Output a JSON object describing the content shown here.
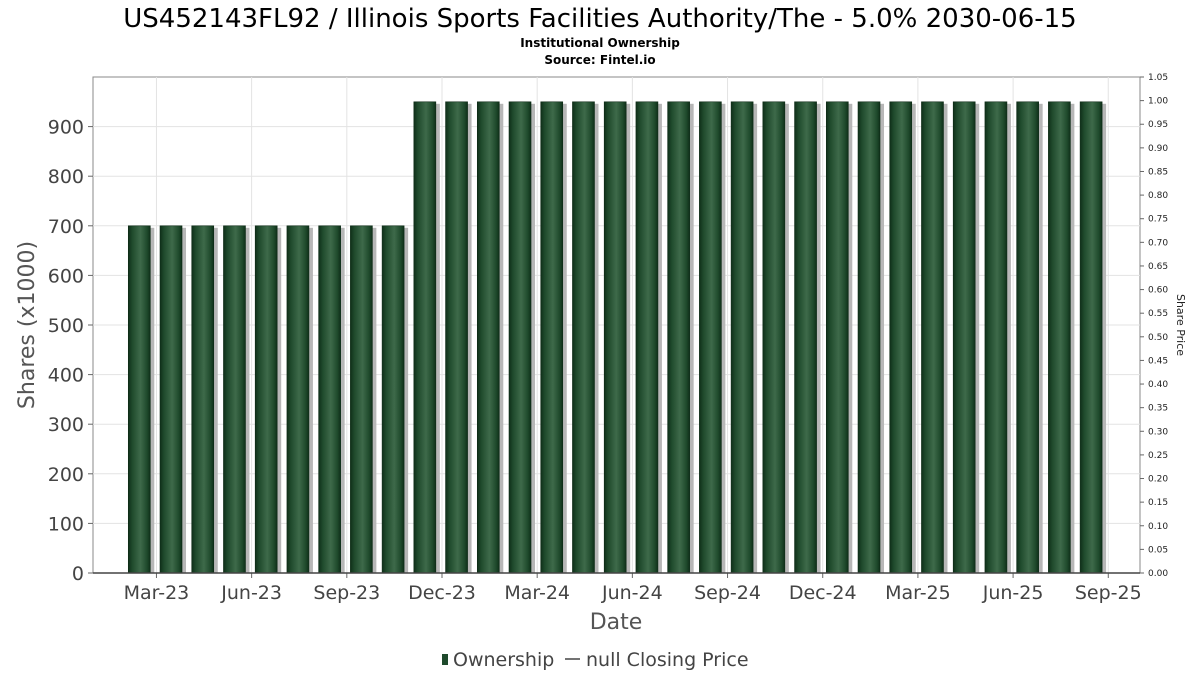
{
  "chart_data": {
    "type": "bar",
    "title": "US452143FL92 / Illinois Sports Facilities Authority/The - 5.0% 2030-06-15",
    "subtitle_lines": [
      "Institutional Ownership",
      "Source: Fintel.io"
    ],
    "xlabel": "Date",
    "ylabel": "Shares (x1000)",
    "y2label": "Share Price",
    "x_tick_labels": [
      "Mar-23",
      "Jun-23",
      "Sep-23",
      "Dec-23",
      "Mar-24",
      "Jun-24",
      "Sep-24",
      "Dec-24",
      "Mar-25",
      "Jun-25",
      "Sep-25"
    ],
    "x_start_month": "2023-01",
    "x_end_month": "2025-10",
    "x_tick_months": [
      "2023-03",
      "2023-06",
      "2023-09",
      "2023-12",
      "2024-03",
      "2024-06",
      "2024-09",
      "2024-12",
      "2025-03",
      "2025-06",
      "2025-09"
    ],
    "ylim": [
      0,
      1000
    ],
    "y_ticks": [
      "0",
      "100",
      "200",
      "300",
      "400",
      "500",
      "600",
      "700",
      "800",
      "900"
    ],
    "y_tick_values": [
      0,
      100,
      200,
      300,
      400,
      500,
      600,
      700,
      800,
      900
    ],
    "y2lim": [
      0,
      1.05
    ],
    "y2_ticks": [
      "0.00",
      "0.05",
      "0.10",
      "0.15",
      "0.20",
      "0.25",
      "0.30",
      "0.35",
      "0.40",
      "0.45",
      "0.50",
      "0.55",
      "0.60",
      "0.65",
      "0.70",
      "0.75",
      "0.80",
      "0.85",
      "0.90",
      "0.95",
      "1.00",
      "1.05"
    ],
    "y2_tick_values": [
      0,
      0.05,
      0.1,
      0.15,
      0.2,
      0.25,
      0.3,
      0.35,
      0.4,
      0.45,
      0.5,
      0.55,
      0.6,
      0.65,
      0.7,
      0.75,
      0.8,
      0.85,
      0.9,
      0.95,
      1.0,
      1.05
    ],
    "grid": true,
    "legend_position": "bottom",
    "series": [
      {
        "name": "Ownership",
        "color": "#1e4a2c",
        "x": [
          "2023-02-15",
          "2023-03-15",
          "2023-04-15",
          "2023-05-15",
          "2023-06-15",
          "2023-07-15",
          "2023-08-15",
          "2023-09-15",
          "2023-10-15",
          "2023-11-15",
          "2023-12-15",
          "2024-01-15",
          "2024-02-15",
          "2024-03-15",
          "2024-04-15",
          "2024-05-15",
          "2024-06-15",
          "2024-07-15",
          "2024-08-15",
          "2024-09-15",
          "2024-10-15",
          "2024-11-15",
          "2024-12-15",
          "2025-01-15",
          "2025-02-15",
          "2025-03-15",
          "2025-04-15",
          "2025-05-15",
          "2025-06-15",
          "2025-07-15",
          "2025-08-15"
        ],
        "values": [
          700,
          700,
          700,
          700,
          700,
          700,
          700,
          700,
          700,
          950,
          950,
          950,
          950,
          950,
          950,
          950,
          950,
          950,
          950,
          950,
          950,
          950,
          950,
          950,
          950,
          950,
          950,
          950,
          950,
          950,
          950
        ]
      },
      {
        "name": "null Closing Price",
        "color": "#444444",
        "values": []
      }
    ]
  }
}
